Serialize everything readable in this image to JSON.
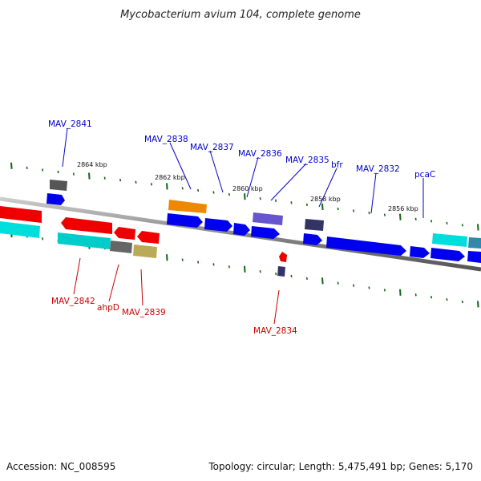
{
  "title": "Mycobacterium avium 104, complete genome",
  "footer": {
    "accession": "Accession: NC_008595",
    "summary": "Topology: circular; Length: 5,475,491 bp; Genes: 5,170"
  },
  "colors": {
    "label_forward": "#0000cc",
    "label_reverse": "#cc0000",
    "tick": "#116611",
    "backbone": "#888888"
  },
  "kbp_labels": [
    "2864 kbp",
    "2862 kbp",
    "2860 kbp",
    "2858 kbp",
    "2856 kbp"
  ],
  "gene_labels_top": [
    "MAV_2841",
    "MAV_2838",
    "MAV_2837",
    "MAV_2836",
    "MAV_2835",
    "bfr",
    "MAV_2832",
    "pcaC"
  ],
  "gene_labels_bottom": [
    "MAV_2842",
    "ahpD",
    "MAV_2839",
    "MAV_2834"
  ]
}
